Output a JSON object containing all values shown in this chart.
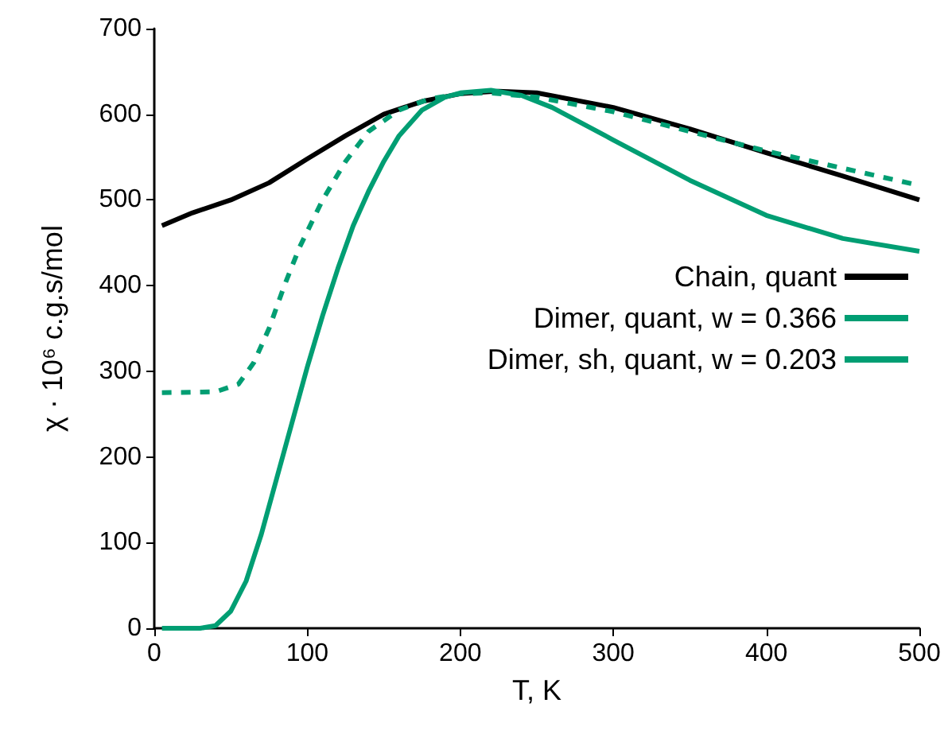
{
  "chart_data": {
    "type": "line",
    "xlabel": "T, K",
    "ylabel": "χ · 10⁶ c.g.s/mol",
    "xlim": [
      0,
      500
    ],
    "xticks": [
      0,
      100,
      200,
      300,
      400,
      500
    ],
    "ylim": [
      0,
      700
    ],
    "yticks": [
      0,
      100,
      200,
      300,
      400,
      500,
      600,
      700
    ],
    "grid": false,
    "legend": "right",
    "marker": "none",
    "series": [
      {
        "name": "Chain, quant",
        "color": "#000000",
        "line_style": "solid",
        "x": [
          5,
          25,
          50,
          75,
          100,
          125,
          150,
          175,
          200,
          225,
          250,
          300,
          350,
          400,
          450,
          500
        ],
        "values": [
          470,
          485,
          500,
          520,
          548,
          575,
          600,
          615,
          624,
          627,
          625,
          608,
          583,
          555,
          528,
          500
        ]
      },
      {
        "name": "Dimer, quant, w = 0.366",
        "color": "#009e73",
        "line_style": "solid",
        "x": [
          5,
          30,
          40,
          50,
          60,
          70,
          80,
          90,
          100,
          110,
          120,
          130,
          140,
          150,
          160,
          175,
          190,
          200,
          220,
          240,
          260,
          300,
          350,
          400,
          450,
          500
        ],
        "values": [
          0,
          0,
          3,
          20,
          55,
          110,
          175,
          240,
          305,
          365,
          420,
          470,
          510,
          545,
          575,
          605,
          620,
          625,
          628,
          622,
          608,
          570,
          523,
          482,
          455,
          440
        ]
      },
      {
        "name": "Dimer, sh, quant, w = 0.203",
        "color": "#009e73",
        "line_style": "dashed",
        "x": [
          5,
          40,
          55,
          65,
          75,
          85,
          95,
          110,
          125,
          140,
          160,
          180,
          200,
          220,
          250,
          300,
          350,
          400,
          450,
          500
        ],
        "values": [
          275,
          276,
          285,
          310,
          350,
          400,
          445,
          500,
          545,
          580,
          605,
          618,
          624,
          625,
          620,
          603,
          580,
          557,
          537,
          517
        ]
      }
    ]
  }
}
